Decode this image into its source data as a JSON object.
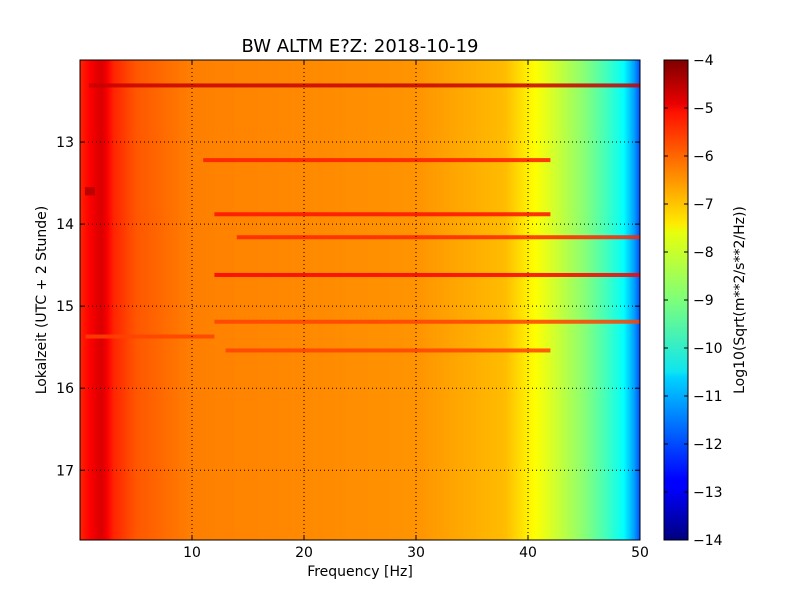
{
  "chart_data": {
    "type": "heatmap",
    "title": "BW ALTM E?Z: 2018-10-19",
    "xlabel": "Frequency [Hz]",
    "ylabel": "Lokalzeit (UTC + 2 Stunde)",
    "colorbar_label": "Log10(Sqrt(m**2/s**2/Hz))",
    "xlim": [
      0,
      50
    ],
    "ylim": [
      12.0,
      17.85
    ],
    "y_inverted": true,
    "x_ticks": [
      10,
      20,
      30,
      40,
      50
    ],
    "y_ticks": [
      13,
      14,
      15,
      16,
      17
    ],
    "colorbar_range": [
      -14,
      -4
    ],
    "colorbar_ticks": [
      -4,
      -5,
      -6,
      -7,
      -8,
      -9,
      -10,
      -11,
      -12,
      -13,
      -14
    ],
    "colormap": "jet",
    "grid": true,
    "frequency_profile": [
      {
        "f": 0.0,
        "v": -5.6
      },
      {
        "f": 1.0,
        "v": -5.2
      },
      {
        "f": 1.5,
        "v": -5.0
      },
      {
        "f": 2.0,
        "v": -4.9
      },
      {
        "f": 3.0,
        "v": -5.6
      },
      {
        "f": 5.0,
        "v": -6.1
      },
      {
        "f": 10.0,
        "v": -6.5
      },
      {
        "f": 20.0,
        "v": -6.6
      },
      {
        "f": 30.0,
        "v": -6.7
      },
      {
        "f": 38.0,
        "v": -7.1
      },
      {
        "f": 40.0,
        "v": -7.6
      },
      {
        "f": 42.0,
        "v": -8.1
      },
      {
        "f": 45.0,
        "v": -8.9
      },
      {
        "f": 47.0,
        "v": -9.6
      },
      {
        "f": 48.5,
        "v": -10.2
      },
      {
        "f": 49.5,
        "v": -11.2
      },
      {
        "f": 50.0,
        "v": -12.0
      }
    ],
    "bands": [
      {
        "time": 12.31,
        "f_start": 0.8,
        "f_end": 50.0,
        "v": -4.7
      },
      {
        "time": 13.22,
        "f_start": 11.0,
        "f_end": 42.0,
        "v": -5.5
      },
      {
        "time": 13.88,
        "f_start": 12.0,
        "f_end": 42.0,
        "v": -5.4
      },
      {
        "time": 14.16,
        "f_start": 14.0,
        "f_end": 50.0,
        "v": -5.6
      },
      {
        "time": 14.62,
        "f_start": 12.0,
        "f_end": 50.0,
        "v": -5.2
      },
      {
        "time": 15.19,
        "f_start": 12.0,
        "f_end": 50.0,
        "v": -5.9
      },
      {
        "time": 15.37,
        "f_start": 0.5,
        "f_end": 12.0,
        "v": -5.9
      },
      {
        "time": 15.54,
        "f_start": 13.0,
        "f_end": 42.0,
        "v": -5.9
      }
    ],
    "hotspots": [
      {
        "f": 0.8,
        "time_start": 13.55,
        "time_end": 13.65,
        "v": -4.6
      }
    ]
  }
}
